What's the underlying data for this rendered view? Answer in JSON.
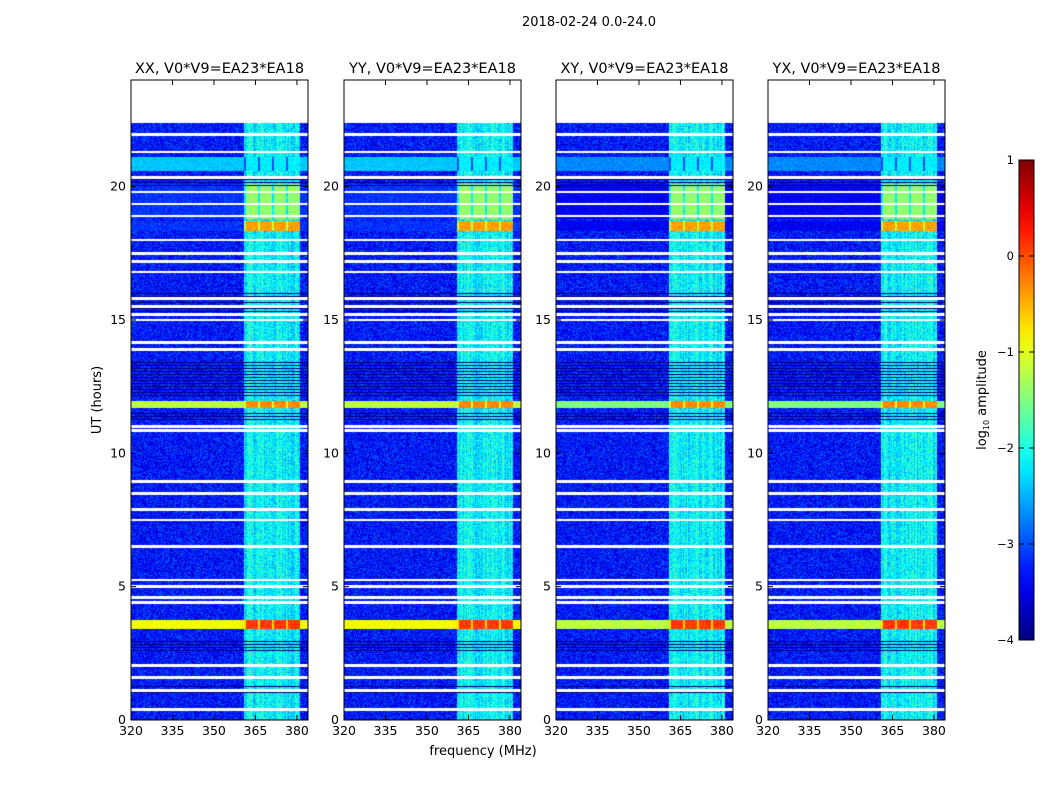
{
  "chart_data": {
    "type": "heatmap",
    "title": "2018-02-24 0.0-24.0",
    "xlabel": "frequency (MHz)",
    "ylabel": "UT (hours)",
    "xlim": [
      320,
      384
    ],
    "ylim": [
      0,
      24
    ],
    "xticks": [
      320,
      335,
      350,
      365,
      380
    ],
    "yticks": [
      0,
      5,
      10,
      15,
      20
    ],
    "panels": [
      {
        "title": "XX, V0*V9=EA23*EA18"
      },
      {
        "title": "YY, V0*V9=EA23*EA18"
      },
      {
        "title": "XY, V0*V9=EA23*EA18"
      },
      {
        "title": "YX, V0*V9=EA23*EA18"
      }
    ],
    "colorbar": {
      "label": "log",
      "label_sub": "10",
      "label_rest": " amplitude",
      "colormap": "jet",
      "range": [
        -4,
        1
      ],
      "ticks": [
        "1",
        "0",
        "−1",
        "−2",
        "−3",
        "−4"
      ],
      "tick_values": [
        1,
        0,
        -1,
        -2,
        -3,
        -4
      ]
    },
    "data_end_hour": 22.4,
    "background_log_amplitude": -3.3,
    "rfi_band_mhz": [
      361,
      381
    ],
    "rfi_band_log_amplitude": -2.4,
    "bright_rows": [
      {
        "hours": [
          3.4,
          3.75
        ],
        "log_amplitude": -0.9,
        "rfi_log_amplitude": 0.1
      },
      {
        "hours": [
          11.7,
          11.95
        ],
        "log_amplitude": -1.2,
        "rfi_log_amplitude": -0.3
      },
      {
        "hours": [
          18.35,
          18.7
        ],
        "log_amplitude": -3.2,
        "rfi_log_amplitude": -0.4
      },
      {
        "hours": [
          18.8,
          20.1
        ],
        "log_amplitude": -3.2,
        "rfi_log_amplitude": -1.4
      },
      {
        "hours": [
          20.6,
          21.1
        ],
        "log_amplitude": -2.4,
        "rfi_log_amplitude": -2.2
      }
    ],
    "flagged_rows_hours": [
      0.4,
      1.1,
      1.6,
      2.05,
      4.4,
      4.6,
      5.0,
      5.25,
      6.5,
      7.5,
      7.9,
      8.5,
      8.95,
      10.85,
      11.0,
      13.9,
      14.15,
      15.0,
      15.2,
      15.5,
      15.8,
      16.8,
      17.2,
      17.5,
      18.0,
      18.9,
      19.35,
      19.8,
      20.35,
      21.3,
      21.95
    ],
    "dark_rows_hours": [
      [
        1.0,
        1.3
      ],
      [
        2.5,
        3.0
      ],
      [
        11.2,
        11.5
      ],
      [
        12.1,
        13.5
      ],
      [
        15.3,
        16.1
      ],
      [
        20.0,
        20.3
      ]
    ]
  }
}
